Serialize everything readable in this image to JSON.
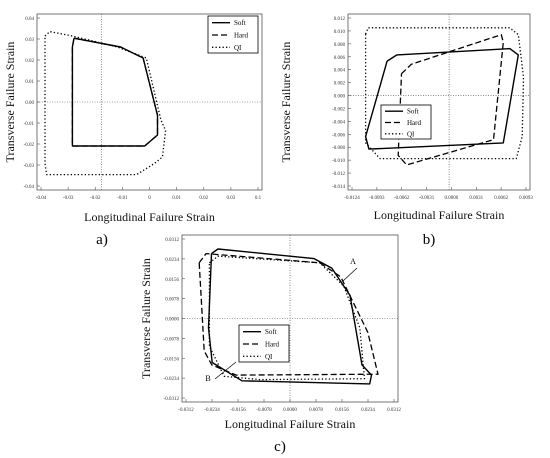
{
  "chart_data": [
    {
      "panel_label": "a)",
      "type": "line",
      "xlabel": "Longitudinal Failure Strain",
      "ylabel": "Transverse Failure Strain",
      "xlim": [
        -0.04,
        0.1
      ],
      "ylim": [
        -0.04,
        0.04
      ],
      "xticks": [
        "-0.04",
        "-0.03",
        "-0.02",
        "-0.01",
        "0",
        "0.01",
        "0.02",
        "0.03",
        "0.1"
      ],
      "yticks": [
        "0.04",
        "0.03",
        "0.02",
        "0.01",
        "0.00",
        "-0.01",
        "-0.02",
        "-0.03",
        "-0.04"
      ],
      "legend_position": "top-right",
      "series": [
        {
          "name": "Soft",
          "style": "solid",
          "points": [
            [
              -0.017,
              0.029
            ],
            [
              0.012,
              0.025
            ],
            [
              0.026,
              0.02
            ],
            [
              0.035,
              -0.006
            ],
            [
              0.035,
              -0.015
            ],
            [
              0.027,
              -0.02
            ],
            [
              -0.018,
              -0.02
            ],
            [
              -0.018,
              0.025
            ],
            [
              -0.017,
              0.029
            ]
          ]
        },
        {
          "name": "Hard",
          "style": "dashed",
          "points": [
            [
              -0.017,
              0.029
            ],
            [
              0.012,
              0.025
            ],
            [
              0.026,
              0.02
            ],
            [
              0.035,
              -0.006
            ],
            [
              0.035,
              -0.015
            ],
            [
              0.027,
              -0.02
            ],
            [
              -0.018,
              -0.02
            ],
            [
              -0.018,
              0.025
            ],
            [
              -0.017,
              0.029
            ]
          ]
        },
        {
          "name": "QI",
          "style": "dotted",
          "points": [
            [
              -0.035,
              0.03
            ],
            [
              -0.032,
              0.032
            ],
            [
              -0.018,
              0.03
            ],
            [
              0.01,
              0.025
            ],
            [
              0.028,
              0.02
            ],
            [
              0.037,
              -0.008
            ],
            [
              0.04,
              -0.013
            ],
            [
              0.038,
              -0.025
            ],
            [
              0.033,
              -0.028
            ],
            [
              0.022,
              -0.033
            ],
            [
              -0.034,
              -0.033
            ],
            [
              -0.035,
              -0.028
            ],
            [
              -0.035,
              0.03
            ]
          ]
        }
      ]
    },
    {
      "panel_label": "b)",
      "type": "line",
      "xlabel": "Longitudinal Failure Strain",
      "ylabel": "Transverse Failure Strain",
      "xlim": [
        -0.0155,
        0.0124
      ],
      "ylim": [
        -0.015,
        0.013
      ],
      "xticks": [
        "-0.0124",
        "-0.0093",
        "-0.0062",
        "-0.0031",
        "0.0000",
        "0.0031",
        "0.0062",
        "0.0093"
      ],
      "yticks": [
        "0.012",
        "0.010",
        "0.008",
        "0.006",
        "0.004",
        "0.002",
        "0.000",
        "-0.002",
        "-0.004",
        "-0.006",
        "-0.008",
        "-0.010",
        "-0.012",
        "-0.014"
      ],
      "legend_position": "bottom-left",
      "series": [
        {
          "name": "Soft",
          "style": "solid",
          "points": [
            [
              -0.0095,
              0.0055
            ],
            [
              -0.008,
              0.0065
            ],
            [
              0.0093,
              0.0075
            ],
            [
              0.0106,
              0.0065
            ],
            [
              0.0083,
              -0.0075
            ],
            [
              -0.0123,
              -0.0085
            ],
            [
              -0.0128,
              -0.0065
            ],
            [
              -0.0095,
              0.0055
            ]
          ]
        },
        {
          "name": "Hard",
          "style": "dashed",
          "points": [
            [
              -0.0073,
              0.0035
            ],
            [
              -0.0058,
              0.005
            ],
            [
              0.008,
              0.0097
            ],
            [
              0.0083,
              0.0085
            ],
            [
              0.0068,
              -0.007
            ],
            [
              -0.0065,
              -0.011
            ],
            [
              -0.0078,
              -0.0095
            ],
            [
              -0.0073,
              0.0035
            ]
          ]
        },
        {
          "name": "QI",
          "style": "dotted",
          "points": [
            [
              -0.0128,
              0.0098
            ],
            [
              -0.0124,
              0.0108
            ],
            [
              0.0093,
              0.0108
            ],
            [
              0.0106,
              0.0097
            ],
            [
              0.0114,
              0.003
            ],
            [
              0.0112,
              -0.0065
            ],
            [
              0.0103,
              -0.01
            ],
            [
              -0.0106,
              -0.01
            ],
            [
              -0.0128,
              -0.0075
            ],
            [
              -0.0128,
              0.0098
            ]
          ]
        }
      ]
    },
    {
      "panel_label": "c)",
      "type": "line",
      "xlabel": "Longitudinal Failure Strain",
      "ylabel": "Transverse Failure Strain",
      "xlim": [
        -0.0351,
        0.0351
      ],
      "ylim": [
        -0.0351,
        0.0351
      ],
      "xticks": [
        "-0.0312",
        "-0.0234",
        "-0.0156",
        "-0.0078",
        "0.0000",
        "0.0078",
        "0.0156",
        "0.0234",
        "0.0312"
      ],
      "yticks": [
        "0.0312",
        "0.0234",
        "0.0156",
        "0.0078",
        "0.0000",
        "-0.0078",
        "-0.0156",
        "-0.0234",
        "-0.0312"
      ],
      "legend_position": "bottom-left",
      "annotations": [
        "A",
        "B"
      ],
      "series": [
        {
          "name": "Soft",
          "style": "solid",
          "points": [
            [
              -0.0255,
              0.0273
            ],
            [
              -0.0234,
              0.0292
            ],
            [
              0.0078,
              0.0252
            ],
            [
              0.0136,
              0.0212
            ],
            [
              0.0195,
              0.0097
            ],
            [
              0.0234,
              -0.0195
            ],
            [
              0.0265,
              -0.0238
            ],
            [
              0.0259,
              -0.0275
            ],
            [
              -0.0156,
              -0.0262
            ],
            [
              -0.0253,
              -0.0185
            ],
            [
              -0.0265,
              -0.0039
            ],
            [
              -0.0255,
              0.0273
            ]
          ]
        },
        {
          "name": "Hard",
          "style": "dashed",
          "points": [
            [
              -0.0295,
              0.0234
            ],
            [
              -0.0273,
              0.0273
            ],
            [
              0.0097,
              0.0234
            ],
            [
              0.0165,
              0.0175
            ],
            [
              0.0253,
              -0.0058
            ],
            [
              0.0286,
              -0.0234
            ],
            [
              -0.0175,
              -0.0238
            ],
            [
              -0.0254,
              -0.0195
            ],
            [
              -0.0279,
              -0.0136
            ],
            [
              -0.0295,
              0.0234
            ]
          ]
        },
        {
          "name": "QI",
          "style": "dotted",
          "points": [
            [
              -0.0262,
              0.0234
            ],
            [
              -0.0234,
              0.0262
            ],
            [
              0.0097,
              0.0234
            ],
            [
              0.0175,
              0.0136
            ],
            [
              0.0227,
              -0.0039
            ],
            [
              0.0242,
              -0.0253
            ],
            [
              -0.0097,
              -0.0257
            ],
            [
              -0.0214,
              -0.0243
            ],
            [
              -0.0262,
              -0.0117
            ],
            [
              -0.0262,
              0.0234
            ]
          ]
        }
      ]
    }
  ]
}
